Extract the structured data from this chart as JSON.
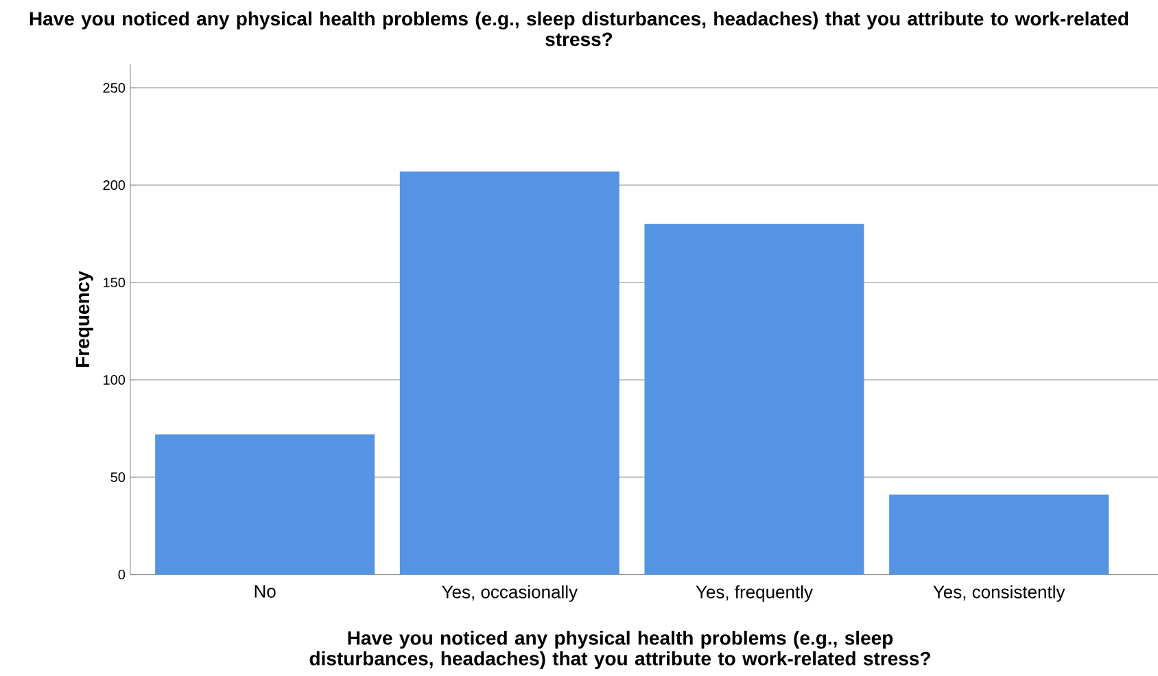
{
  "chart_data": {
    "type": "bar",
    "title": "Have you noticed any physical health problems (e.g., sleep disturbances, headaches) that you attribute to work-related stress?",
    "xlabel": "Have you noticed any physical health problems (e.g., sleep disturbances, headaches) that you attribute to work-related stress?",
    "ylabel": "Frequency",
    "categories": [
      "No",
      "Yes, occasionally",
      "Yes, frequently",
      "Yes, consistently"
    ],
    "values": [
      72,
      207,
      180,
      41
    ],
    "color": "#5594e3",
    "ylim": [
      0,
      262
    ],
    "yticks": [
      0,
      50,
      100,
      150,
      200,
      250
    ],
    "grid": "y"
  }
}
